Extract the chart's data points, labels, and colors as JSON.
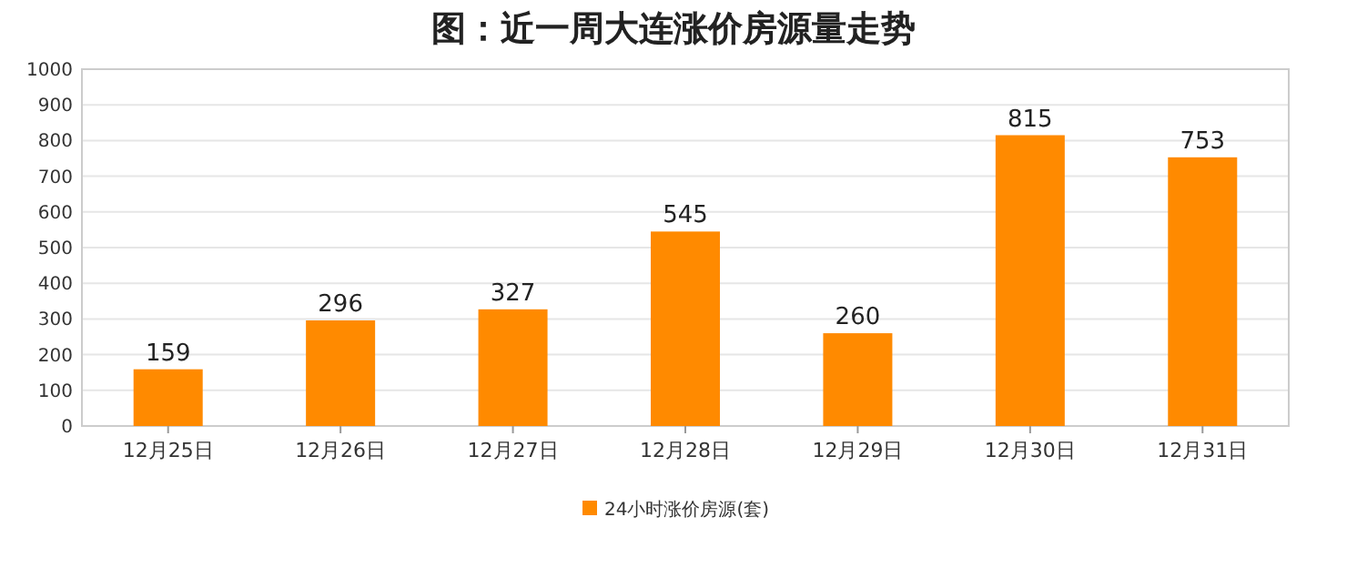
{
  "chart_data": {
    "type": "bar",
    "title": "图：近一周大连涨价房源量走势",
    "categories": [
      "12月25日",
      "12月26日",
      "12月27日",
      "12月28日",
      "12月29日",
      "12月30日",
      "12月31日"
    ],
    "series": [
      {
        "name": "24小时涨价房源(套)",
        "color": "#ff8a00",
        "values": [
          159,
          296,
          327,
          545,
          260,
          815,
          753
        ]
      }
    ],
    "ylim": [
      0,
      1000
    ],
    "yticks": [
      0,
      100,
      200,
      300,
      400,
      500,
      600,
      700,
      800,
      900,
      1000
    ],
    "grid": "y",
    "legend": "bottom",
    "data_labels": true
  }
}
